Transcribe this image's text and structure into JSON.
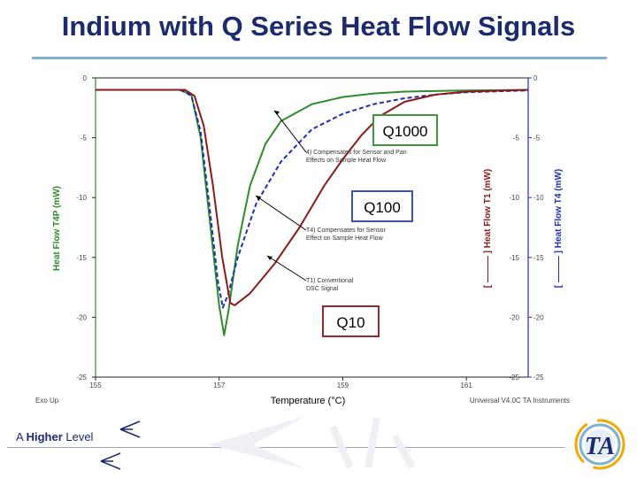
{
  "slide": {
    "title": "Indium with Q Series Heat Flow Signals",
    "tagline_a": "A ",
    "tagline_b": "Higher",
    "tagline_c": " Level",
    "logo_text": "TA"
  },
  "chart_data": {
    "type": "line",
    "xlabel": "Temperature (°C)",
    "ylabel_left": "Heat Flow T4P (mW)",
    "ylabel_right1": "[ ——— ] Heat Flow T1 (mW)",
    "ylabel_right2": "[ ——— ] Heat Flow T4 (mW)",
    "xlim": [
      155,
      162
    ],
    "x_ticks": [
      155,
      157,
      159,
      161
    ],
    "x_tick_labels": [
      "155",
      "157",
      "159",
      "161"
    ],
    "ylim": [
      -25,
      0
    ],
    "y_ticks": [
      0,
      -5,
      -10,
      -15,
      -20,
      -25
    ],
    "y_tick_labels_left": [
      "0",
      "-5",
      "-10",
      "-15",
      "-20",
      "-25"
    ],
    "y_tick_labels_right": [
      "0",
      "-5",
      "-10",
      "-15",
      "-20",
      "-25"
    ],
    "footer_left": "Exo Up",
    "footer_right": "Universal V4.0C TA Instruments",
    "series": [
      {
        "color": "#2e8b2e",
        "dash": "",
        "x": [
          155,
          156.35,
          156.55,
          156.7,
          156.85,
          157.0,
          157.08,
          157.15,
          157.3,
          157.5,
          157.75,
          158.0,
          158.5,
          159.0,
          159.5,
          160.0,
          161.0,
          162.0
        ],
        "y": [
          -1.0,
          -1.0,
          -1.4,
          -5.0,
          -12.0,
          -19.0,
          -21.5,
          -19.5,
          -14.0,
          -9.0,
          -5.5,
          -3.6,
          -2.2,
          -1.6,
          -1.3,
          -1.15,
          -1.05,
          -1.0
        ]
      },
      {
        "color": "#1e2fb0",
        "dash": "5,3",
        "x": [
          155,
          156.38,
          156.55,
          156.7,
          156.85,
          156.98,
          157.06,
          157.15,
          157.3,
          157.6,
          158.0,
          158.5,
          159.0,
          159.5,
          160.0,
          160.5,
          161.0,
          162.0
        ],
        "y": [
          -1.0,
          -1.0,
          -1.5,
          -4.5,
          -11.0,
          -17.0,
          -19.2,
          -18.0,
          -15.0,
          -10.5,
          -7.0,
          -4.3,
          -3.0,
          -2.2,
          -1.7,
          -1.4,
          -1.2,
          -1.05
        ]
      },
      {
        "color": "#8b1a1a",
        "dash": "",
        "x": [
          155,
          156.45,
          156.6,
          156.75,
          156.9,
          157.05,
          157.18,
          157.25,
          157.5,
          157.9,
          158.3,
          158.7,
          159.0,
          159.3,
          159.6,
          160.0,
          160.5,
          161.0,
          162.0
        ],
        "y": [
          -1.0,
          -1.0,
          -1.5,
          -4.0,
          -9.0,
          -15.0,
          -18.8,
          -19.0,
          -18.0,
          -15.5,
          -12.5,
          -9.0,
          -6.8,
          -4.8,
          -3.2,
          -2.0,
          -1.4,
          -1.15,
          -1.0
        ]
      }
    ],
    "annotations": [
      {
        "lines": [
          "4) Compensates for Sensor and Pan",
          "Effects on Sample Heat Flow"
        ]
      },
      {
        "lines": [
          "T4) Compensates for Sensor",
          "Effect on Sample Heat Flow"
        ]
      },
      {
        "lines": [
          "T1) Conventional",
          "DSC Signal"
        ]
      }
    ],
    "boxes": [
      {
        "label": "Q1000",
        "color": "#3a9a3a"
      },
      {
        "label": "Q100",
        "color": "#3a4fc0"
      },
      {
        "label": "Q10",
        "color": "#9a2a2a"
      }
    ]
  }
}
